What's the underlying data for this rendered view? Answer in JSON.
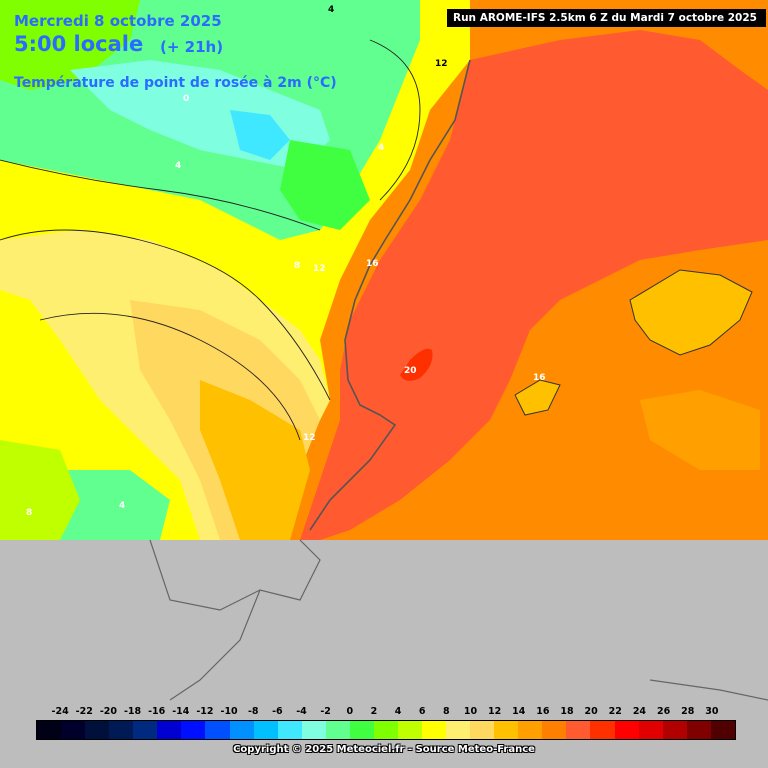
{
  "header": {
    "date": "Mercredi 8 octobre 2025",
    "time": "5:00 locale",
    "offset": "(+ 21h)",
    "variable": "Température de point de rosée à 2m (°C)"
  },
  "run_info": "Run AROME-IFS 2.5km 6 Z du Mardi 7 octobre 2025",
  "contour_labels": [
    "4",
    "12",
    "0",
    "4",
    "4",
    "12",
    "8",
    "16",
    "20",
    "16",
    "12",
    "4",
    "8"
  ],
  "legend": {
    "unit": "°C",
    "ticks": [
      "-24",
      "-22",
      "-20",
      "-18",
      "-16",
      "-14",
      "-12",
      "-10",
      "-8",
      "-6",
      "-4",
      "-2",
      "0",
      "2",
      "4",
      "6",
      "8",
      "10",
      "12",
      "14",
      "16",
      "18",
      "20",
      "22",
      "24",
      "26",
      "28",
      "30"
    ],
    "colors": [
      "#000016",
      "#00002a",
      "#00103a",
      "#001a55",
      "#002a80",
      "#0000d0",
      "#0010ff",
      "#0050ff",
      "#0090ff",
      "#00c0ff",
      "#40e8ff",
      "#80ffe0",
      "#60ff90",
      "#40ff40",
      "#80ff00",
      "#c0ff00",
      "#ffff00",
      "#ffef70",
      "#ffd860",
      "#ffc000",
      "#ffa000",
      "#ff8000",
      "#ff5a30",
      "#ff3000",
      "#ff0000",
      "#e00000",
      "#b00000",
      "#800000",
      "#500000"
    ]
  },
  "copyright": "Copyright © 2025 Meteociel.fr - Source Meteo-France"
}
